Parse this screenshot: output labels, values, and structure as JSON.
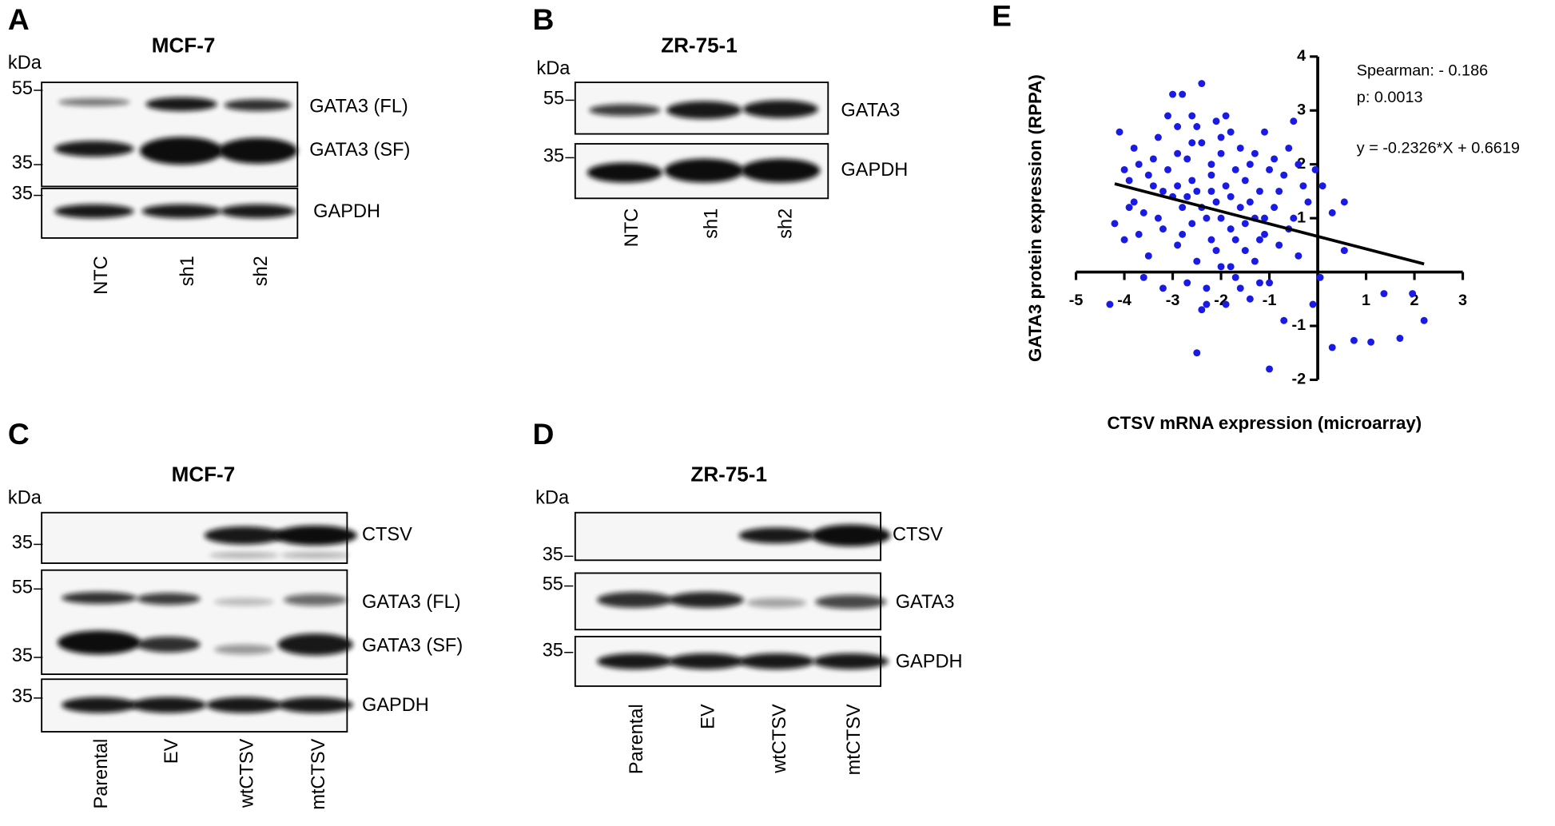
{
  "panels": [
    {
      "letter": "A",
      "title": "MCF-7",
      "unit": "kDa",
      "markers": [
        55,
        35,
        35
      ],
      "proteins": [
        "GATA3 (FL)",
        "GATA3 (SF)",
        "GAPDH"
      ],
      "lanes": [
        "NTC",
        "sh1",
        "sh2"
      ]
    },
    {
      "letter": "B",
      "title": "ZR-75-1",
      "unit": "kDa",
      "markers": [
        55,
        35
      ],
      "proteins": [
        "GATA3",
        "GAPDH"
      ],
      "lanes": [
        "NTC",
        "sh1",
        "sh2"
      ]
    },
    {
      "letter": "C",
      "title": "MCF-7",
      "unit": "kDa",
      "markers": [
        35,
        55,
        35,
        35
      ],
      "proteins": [
        "CTSV",
        "GATA3 (FL)",
        "GATA3 (SF)",
        "GAPDH"
      ],
      "lanes": [
        "Parental",
        "EV",
        "wtCTSV",
        "mtCTSV"
      ]
    },
    {
      "letter": "D",
      "title": "ZR-75-1",
      "unit": "kDa",
      "markers": [
        35,
        55,
        35
      ],
      "proteins": [
        "CTSV",
        "GATA3",
        "GAPDH"
      ],
      "lanes": [
        "Parental",
        "EV",
        "wtCTSV",
        "mtCTSV"
      ]
    }
  ],
  "chart_data": {
    "type": "scatter",
    "panel": "E",
    "xlabel": "CTSV mRNA expression (microarray)",
    "ylabel": "GATA3 protein expression (RPPA)",
    "annotations": [
      "Spearman: - 0.186",
      "p: 0.0013",
      "y = -0.2326*X + 0.6619"
    ],
    "color": "#1a1ae6",
    "xlim": [
      -5,
      3
    ],
    "ylim": [
      -2,
      4
    ],
    "xticks": [
      -5,
      -4,
      -3,
      -2,
      -1,
      1,
      2,
      3
    ],
    "yticks": [
      4,
      3,
      2,
      1,
      -1,
      -2
    ],
    "fit": {
      "slope": -0.2326,
      "intercept": 0.6619,
      "x": [
        -4.2,
        2.2
      ]
    },
    "x": [
      -4.1,
      -3.9,
      -4.2,
      -4.0,
      -3.8,
      -3.7,
      -3.6,
      -3.5,
      -3.4,
      -3.3,
      -3.2,
      -3.1,
      -3.0,
      -2.9,
      -2.9,
      -2.8,
      -2.8,
      -2.7,
      -2.6,
      -2.6,
      -2.5,
      -2.5,
      -2.4,
      -2.4,
      -2.3,
      -2.3,
      -2.2,
      -2.2,
      -2.1,
      -2.1,
      -2.0,
      -2.0,
      -1.9,
      -1.9,
      -1.8,
      -1.8,
      -1.7,
      -1.7,
      -1.6,
      -1.6,
      -1.5,
      -1.5,
      -1.4,
      -1.4,
      -1.3,
      -1.3,
      -1.2,
      -1.1,
      -1.1,
      -1.0,
      -1.0,
      -0.9,
      -0.8,
      -0.7,
      -0.7,
      -0.6,
      -0.5,
      -0.5,
      -0.4,
      -0.3,
      -3.6,
      -3.2,
      -4.3,
      -2.7,
      -2.4,
      -2.5,
      -1.0,
      -2.9,
      -3.3,
      -2.6,
      -2.0,
      -1.8,
      -2.2,
      -3.0,
      -3.4,
      -2.8,
      -1.5,
      -1.2,
      -2.4,
      -3.7,
      -3.9,
      -2.1,
      -1.7,
      -2.6,
      -3.1,
      -1.9,
      -1.3,
      -0.9,
      -0.4,
      -0.2,
      -1.6,
      -2.3,
      -3.5,
      -4.0,
      -2.9,
      -2.5,
      -2.0,
      -1.4,
      -0.8,
      -2.7,
      -3.2,
      -1.1,
      -0.6,
      -3.8,
      -2.2,
      -1.8,
      -1.2,
      0.1,
      0.3,
      0.55,
      0.55,
      -0.1,
      0.3,
      0.75,
      1.1,
      1.7,
      2.2,
      1.37,
      1.96,
      0.05,
      -0.05
    ],
    "values": [
      2.6,
      1.7,
      0.9,
      0.6,
      1.3,
      2.0,
      1.1,
      0.3,
      1.6,
      2.5,
      0.8,
      1.9,
      3.3,
      2.7,
      0.5,
      3.3,
      1.2,
      2.1,
      0.9,
      2.9,
      1.5,
      0.2,
      3.5,
      2.4,
      1.0,
      -0.3,
      1.8,
      0.6,
      2.8,
      1.3,
      0.1,
      2.2,
      1.6,
      -0.6,
      0.8,
      2.6,
      1.9,
      -0.1,
      1.2,
      2.3,
      0.4,
      1.7,
      -0.5,
      2.0,
      1.0,
      0.2,
      1.5,
      2.6,
      0.7,
      1.9,
      -0.2,
      1.2,
      0.5,
      1.8,
      -0.9,
      2.3,
      1.0,
      2.8,
      0.3,
      1.6,
      -0.1,
      -0.3,
      -0.6,
      -0.2,
      -0.7,
      -1.5,
      -1.8,
      1.6,
      1.0,
      1.7,
      1.0,
      1.4,
      2.0,
      1.4,
      2.1,
      0.7,
      0.9,
      0.6,
      1.2,
      0.7,
      1.2,
      0.4,
      0.6,
      2.4,
      2.9,
      2.9,
      2.2,
      2.1,
      2.0,
      1.3,
      -0.3,
      -0.6,
      1.8,
      1.9,
      2.2,
      2.7,
      2.5,
      1.3,
      1.5,
      1.4,
      1.5,
      1.0,
      0.8,
      2.3,
      1.5,
      0.1,
      -0.2,
      1.6,
      1.1,
      1.3,
      0.4,
      -0.6,
      -1.4,
      -1.27,
      -1.3,
      -1.23,
      -0.9,
      -0.4,
      -0.4,
      -0.1,
      1.9
    ]
  }
}
